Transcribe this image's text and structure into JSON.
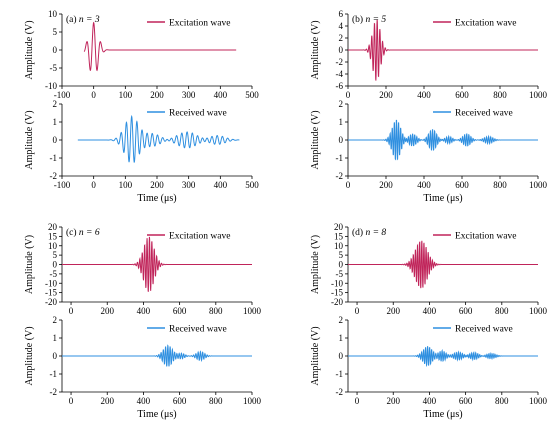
{
  "colors": {
    "excitation": "#c0245a",
    "received": "#2e8fe0",
    "axis": "#000000",
    "background": "#ffffff"
  },
  "chart_data": [
    {
      "type": "line",
      "panel_label": "(a) ",
      "panel_n": "n = 3",
      "charts": [
        {
          "ylabel": "Amplitude (V)",
          "xlabel": "",
          "xlim": [
            -100,
            500
          ],
          "ylim": [
            -10,
            10
          ],
          "xticks": [
            -100,
            0,
            100,
            200,
            300,
            400,
            500
          ],
          "yticks": [
            -10,
            -5,
            0,
            5,
            10
          ],
          "series": [
            {
              "name": "Excitation wave",
              "color": "excitation",
              "signal": {
                "x_start": -30,
                "x_end": 450,
                "center": 0,
                "freq": 0.045,
                "sigma": 14,
                "amp": 7.6,
                "phase": 1.57
              }
            }
          ]
        },
        {
          "ylabel": "Amplitude (V)",
          "xlabel": "Time (μs)",
          "xlim": [
            -100,
            500
          ],
          "ylim": [
            -2,
            2
          ],
          "xticks": [
            -100,
            0,
            100,
            200,
            300,
            400,
            500
          ],
          "yticks": [
            -2,
            -1,
            0,
            1,
            2
          ],
          "series": [
            {
              "name": "Received wave",
              "color": "received",
              "signal": {
                "x_start": -50,
                "x_end": 460,
                "freq": 0.06,
                "packets": [
                  {
                    "center": 120,
                    "sigma": 22,
                    "amp": 1.3
                  },
                  {
                    "center": 185,
                    "sigma": 25,
                    "amp": 0.35
                  },
                  {
                    "center": 295,
                    "sigma": 30,
                    "amp": 0.45
                  },
                  {
                    "center": 390,
                    "sigma": 25,
                    "amp": 0.25
                  }
                ]
              }
            }
          ]
        }
      ]
    },
    {
      "type": "line",
      "panel_label": "(b) ",
      "panel_n": "n = 5",
      "charts": [
        {
          "ylabel": "Amplitude (V)",
          "xlabel": "",
          "xlim": [
            0,
            1000
          ],
          "ylim": [
            -6,
            6
          ],
          "xticks": [
            0,
            200,
            400,
            600,
            800,
            1000
          ],
          "yticks": [
            -6,
            -4,
            -2,
            0,
            2,
            4,
            6
          ],
          "series": [
            {
              "name": "Excitation wave",
              "color": "excitation",
              "signal": {
                "x_start": 0,
                "x_end": 1000,
                "center": 150,
                "freq": 0.07,
                "sigma": 20,
                "amp": 5.2,
                "phase": 0
              }
            }
          ]
        },
        {
          "ylabel": "Amplitude (V)",
          "xlabel": "Time (μs)",
          "xlim": [
            0,
            1000
          ],
          "ylim": [
            -2,
            2
          ],
          "xticks": [
            0,
            200,
            400,
            600,
            800,
            1000
          ],
          "yticks": [
            -2,
            -1,
            0,
            1,
            2
          ],
          "series": [
            {
              "name": "Received wave",
              "color": "received",
              "signal": {
                "x_start": 0,
                "x_end": 1000,
                "freq": 0.09,
                "packets": [
                  {
                    "center": 255,
                    "sigma": 22,
                    "amp": 1.15
                  },
                  {
                    "center": 340,
                    "sigma": 20,
                    "amp": 0.35
                  },
                  {
                    "center": 445,
                    "sigma": 20,
                    "amp": 0.6
                  },
                  {
                    "center": 530,
                    "sigma": 18,
                    "amp": 0.2
                  },
                  {
                    "center": 625,
                    "sigma": 20,
                    "amp": 0.35
                  },
                  {
                    "center": 740,
                    "sigma": 22,
                    "amp": 0.2
                  }
                ]
              }
            }
          ]
        }
      ]
    },
    {
      "type": "line",
      "panel_label": "(c) ",
      "panel_n": "n = 6",
      "charts": [
        {
          "ylabel": "Amplitude (V)",
          "xlabel": "",
          "xlim": [
            -50,
            1000
          ],
          "ylim": [
            -20,
            20
          ],
          "xticks": [
            0,
            200,
            400,
            600,
            800,
            1000
          ],
          "yticks": [
            -20,
            -15,
            -10,
            -5,
            0,
            5,
            10,
            15,
            20
          ],
          "series": [
            {
              "name": "Excitation wave",
              "color": "excitation",
              "signal": {
                "x_start": -50,
                "x_end": 1000,
                "center": 430,
                "freq": 0.075,
                "sigma": 28,
                "amp": 15,
                "phase": 0
              }
            }
          ]
        },
        {
          "ylabel": "Amplitude (V)",
          "xlabel": "Time (μs)",
          "xlim": [
            -50,
            1000
          ],
          "ylim": [
            -2,
            2
          ],
          "xticks": [
            0,
            200,
            400,
            600,
            800,
            1000
          ],
          "yticks": [
            -2,
            -1,
            0,
            1,
            2
          ],
          "series": [
            {
              "name": "Received wave",
              "color": "received",
              "signal": {
                "x_start": -50,
                "x_end": 1000,
                "freq": 0.08,
                "packets": [
                  {
                    "center": 535,
                    "sigma": 25,
                    "amp": 0.6
                  },
                  {
                    "center": 610,
                    "sigma": 18,
                    "amp": 0.15
                  },
                  {
                    "center": 715,
                    "sigma": 22,
                    "amp": 0.25
                  }
                ]
              }
            }
          ]
        }
      ]
    },
    {
      "type": "line",
      "panel_label": "(d) ",
      "panel_n": "n = 8",
      "charts": [
        {
          "ylabel": "Amplitude (V)",
          "xlabel": "",
          "xlim": [
            -50,
            1000
          ],
          "ylim": [
            -20,
            20
          ],
          "xticks": [
            0,
            200,
            400,
            600,
            800,
            1000
          ],
          "yticks": [
            -20,
            -15,
            -10,
            -5,
            0,
            5,
            10,
            15,
            20
          ],
          "series": [
            {
              "name": "Excitation wave",
              "color": "excitation",
              "signal": {
                "x_start": -50,
                "x_end": 1000,
                "center": 355,
                "freq": 0.085,
                "sigma": 33,
                "amp": 13,
                "phase": 0
              }
            }
          ]
        },
        {
          "ylabel": "Amplitude (V)",
          "xlabel": "Time (μs)",
          "xlim": [
            -50,
            1000
          ],
          "ylim": [
            -2,
            2
          ],
          "xticks": [
            0,
            200,
            400,
            600,
            800,
            1000
          ],
          "yticks": [
            -2,
            -1,
            0,
            1,
            2
          ],
          "series": [
            {
              "name": "Received wave",
              "color": "received",
              "signal": {
                "x_start": -50,
                "x_end": 1000,
                "freq": 0.09,
                "packets": [
                  {
                    "center": 390,
                    "sigma": 25,
                    "amp": 0.55
                  },
                  {
                    "center": 470,
                    "sigma": 20,
                    "amp": 0.3
                  },
                  {
                    "center": 560,
                    "sigma": 25,
                    "amp": 0.22
                  },
                  {
                    "center": 645,
                    "sigma": 25,
                    "amp": 0.2
                  },
                  {
                    "center": 740,
                    "sigma": 25,
                    "amp": 0.15
                  }
                ]
              }
            }
          ]
        }
      ]
    }
  ]
}
